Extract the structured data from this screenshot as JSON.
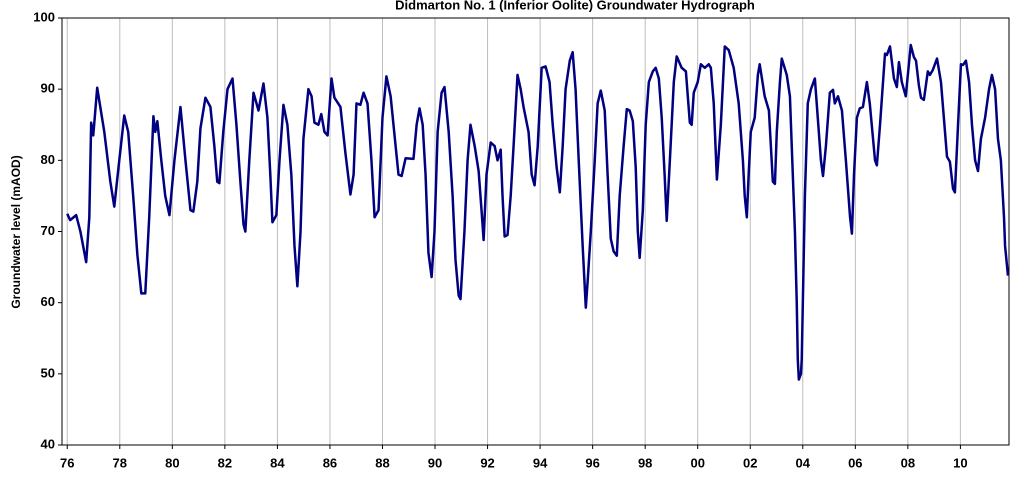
{
  "chart_data": {
    "type": "line",
    "title": "Didmarton No. 1 (Inferior Oolite) Groundwater Hydrograph",
    "ylabel": "Groundwater level (mAOD)",
    "xlim": [
      1975.8,
      2011.85
    ],
    "ylim": [
      40,
      100
    ],
    "yticks": [
      40,
      50,
      60,
      70,
      80,
      90,
      100
    ],
    "xticks": [
      {
        "value": 1976,
        "label": "76"
      },
      {
        "value": 1978,
        "label": "78"
      },
      {
        "value": 1980,
        "label": "80"
      },
      {
        "value": 1982,
        "label": "82"
      },
      {
        "value": 1984,
        "label": "84"
      },
      {
        "value": 1986,
        "label": "86"
      },
      {
        "value": 1988,
        "label": "88"
      },
      {
        "value": 1990,
        "label": "90"
      },
      {
        "value": 1992,
        "label": "92"
      },
      {
        "value": 1994,
        "label": "94"
      },
      {
        "value": 1996,
        "label": "96"
      },
      {
        "value": 1998,
        "label": "98"
      },
      {
        "value": 2000,
        "label": "00"
      },
      {
        "value": 2002,
        "label": "02"
      },
      {
        "value": 2004,
        "label": "04"
      },
      {
        "value": 2006,
        "label": "06"
      },
      {
        "value": 2008,
        "label": "08"
      },
      {
        "value": 2010,
        "label": "10"
      }
    ],
    "grid": true,
    "x": [
      1976.0,
      1976.11,
      1976.34,
      1976.5,
      1976.72,
      1976.84,
      1976.91,
      1976.99,
      1977.14,
      1977.41,
      1977.64,
      1977.79,
      1977.98,
      1978.17,
      1978.32,
      1978.51,
      1978.67,
      1978.82,
      1978.97,
      1979.12,
      1979.28,
      1979.35,
      1979.43,
      1979.58,
      1979.73,
      1979.89,
      1980.08,
      1980.31,
      1980.5,
      1980.69,
      1980.8,
      1980.95,
      1981.07,
      1981.26,
      1981.45,
      1981.6,
      1981.71,
      1981.79,
      1981.94,
      1982.1,
      1982.29,
      1982.44,
      1982.59,
      1982.71,
      1982.78,
      1982.93,
      1983.09,
      1983.28,
      1983.47,
      1983.62,
      1983.73,
      1983.81,
      1983.96,
      1984.08,
      1984.23,
      1984.38,
      1984.53,
      1984.65,
      1984.76,
      1984.88,
      1984.99,
      1985.18,
      1985.3,
      1985.41,
      1985.56,
      1985.67,
      1985.79,
      1985.91,
      1986.06,
      1986.17,
      1986.4,
      1986.59,
      1986.78,
      1986.9,
      1987.01,
      1987.16,
      1987.28,
      1987.43,
      1987.58,
      1987.7,
      1987.85,
      1988.0,
      1988.15,
      1988.31,
      1988.5,
      1988.61,
      1988.73,
      1988.88,
      1989.18,
      1989.3,
      1989.41,
      1989.53,
      1989.64,
      1989.75,
      1989.87,
      1989.98,
      1990.1,
      1990.25,
      1990.36,
      1990.52,
      1990.67,
      1990.78,
      1990.9,
      1990.97,
      1991.12,
      1991.24,
      1991.35,
      1991.51,
      1991.66,
      1991.77,
      1991.85,
      1991.96,
      1992.12,
      1992.27,
      1992.38,
      1992.5,
      1992.57,
      1992.65,
      1992.76,
      1992.88,
      1992.99,
      1993.14,
      1993.26,
      1993.37,
      1993.56,
      1993.68,
      1993.79,
      1993.91,
      1994.06,
      1994.21,
      1994.36,
      1994.48,
      1994.63,
      1994.75,
      1994.86,
      1994.97,
      1995.13,
      1995.24,
      1995.35,
      1995.47,
      1995.62,
      1995.74,
      1995.81,
      1995.93,
      1996.08,
      1996.19,
      1996.31,
      1996.46,
      1996.57,
      1996.69,
      1996.8,
      1996.92,
      1997.03,
      1997.18,
      1997.3,
      1997.41,
      1997.53,
      1997.64,
      1997.72,
      1997.79,
      1997.91,
      1998.02,
      1998.14,
      1998.29,
      1998.4,
      1998.52,
      1998.63,
      1998.74,
      1998.82,
      1998.94,
      1999.09,
      1999.2,
      1999.39,
      1999.55,
      1999.7,
      1999.77,
      1999.85,
      2000.0,
      2000.12,
      2000.27,
      2000.42,
      2000.5,
      2000.61,
      2000.73,
      2000.88,
      2001.03,
      2001.18,
      2001.37,
      2001.56,
      2001.72,
      2001.79,
      2001.87,
      2001.94,
      2002.02,
      2002.17,
      2002.29,
      2002.36,
      2002.55,
      2002.71,
      2002.86,
      2002.94,
      2003.01,
      2003.13,
      2003.2,
      2003.39,
      2003.51,
      2003.58,
      2003.7,
      2003.77,
      2003.81,
      2003.85,
      2003.93,
      2003.96,
      2004.08,
      2004.19,
      2004.31,
      2004.46,
      2004.57,
      2004.69,
      2004.77,
      2004.88,
      2005.03,
      2005.15,
      2005.22,
      2005.34,
      2005.49,
      2005.64,
      2005.8,
      2005.87,
      2005.95,
      2006.06,
      2006.17,
      2006.29,
      2006.44,
      2006.55,
      2006.75,
      2006.82,
      2006.94,
      2007.13,
      2007.2,
      2007.32,
      2007.47,
      2007.58,
      2007.66,
      2007.77,
      2007.92,
      2008.11,
      2008.23,
      2008.31,
      2008.42,
      2008.5,
      2008.61,
      2008.76,
      2008.84,
      2008.95,
      2009.11,
      2009.26,
      2009.37,
      2009.49,
      2009.6,
      2009.72,
      2009.79,
      2009.91,
      2010.02,
      2010.1,
      2010.21,
      2010.33,
      2010.44,
      2010.56,
      2010.67,
      2010.78,
      2010.94,
      2011.09,
      2011.2,
      2011.32,
      2011.43,
      2011.54,
      2011.66,
      2011.7,
      2011.81
    ],
    "series": [
      {
        "color": "#000080",
        "values": [
          72.5,
          71.6,
          72.3,
          70,
          65.7,
          72,
          85.3,
          83.5,
          90.2,
          84,
          77,
          73.5,
          80,
          86.3,
          84,
          75,
          66.7,
          61.3,
          61.3,
          72,
          86.2,
          84,
          85.5,
          80,
          75,
          72.3,
          80,
          87.5,
          80,
          73,
          72.8,
          77,
          84.5,
          88.8,
          87.5,
          82,
          77,
          76.8,
          84,
          90,
          91.5,
          85,
          77,
          71,
          70,
          80,
          89.5,
          87,
          90.8,
          86,
          78,
          71.3,
          72.3,
          80,
          87.8,
          85,
          78,
          68,
          62.3,
          70,
          83,
          90,
          89,
          85.3,
          85,
          86.5,
          84,
          83.5,
          91.5,
          88.8,
          87.5,
          81,
          75.2,
          78,
          88,
          87.8,
          89.5,
          88,
          80,
          72,
          73,
          86,
          91.8,
          89,
          82,
          78,
          77.8,
          80.3,
          80.2,
          85,
          87.3,
          85,
          78,
          67,
          63.6,
          70,
          84,
          89.5,
          90.3,
          84,
          75,
          66,
          61,
          60.5,
          70,
          80,
          85,
          82,
          78.5,
          73,
          68.8,
          78,
          82.5,
          82,
          80,
          81.5,
          75,
          69.3,
          69.5,
          75,
          82,
          92,
          90,
          87.5,
          84,
          78,
          76.5,
          82,
          93,
          93.2,
          91,
          85,
          79,
          75.5,
          82,
          90,
          94,
          95.2,
          90,
          80,
          68,
          59.3,
          63,
          70,
          80,
          88,
          89.8,
          87,
          78,
          69,
          67.2,
          66.6,
          75,
          82,
          87.2,
          87,
          85.5,
          79,
          70,
          66.3,
          73,
          85,
          91,
          92.5,
          93,
          91.5,
          86,
          78,
          71.5,
          80,
          91,
          94.6,
          93,
          92.5,
          85.3,
          85,
          89.5,
          91,
          93.5,
          93,
          93.5,
          93,
          88,
          77.3,
          85,
          96,
          95.5,
          93,
          88,
          80,
          75,
          72,
          78,
          84,
          86,
          92,
          93.5,
          89,
          87,
          77,
          76.7,
          84,
          91,
          94.3,
          92,
          89,
          82,
          70,
          60,
          52,
          49.2,
          50,
          52,
          75,
          88,
          90,
          91.5,
          86,
          80,
          77.8,
          82,
          89.5,
          89.9,
          88,
          89,
          87,
          80,
          72,
          69.7,
          78,
          86,
          87.3,
          87.5,
          91,
          88,
          80,
          79.3,
          85,
          95,
          94.8,
          96,
          91.5,
          90.3,
          93.8,
          91,
          89,
          96.2,
          94.5,
          94,
          90.5,
          88.8,
          88.5,
          92.5,
          92,
          92.7,
          94.3,
          91,
          86,
          80.5,
          79.8,
          76,
          75.5,
          85,
          93.5,
          93.4,
          94,
          91,
          85,
          80,
          78.5,
          83,
          86,
          90,
          92,
          90,
          83,
          80,
          72,
          68,
          63.8
        ]
      }
    ]
  }
}
